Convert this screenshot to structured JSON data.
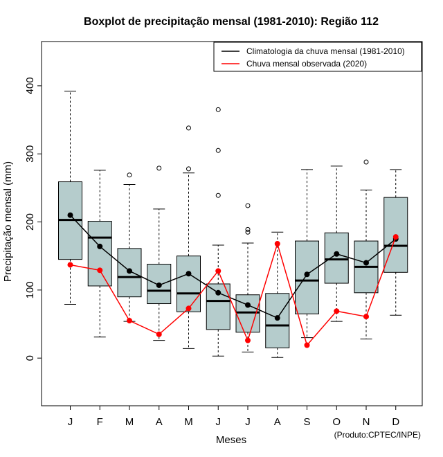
{
  "chart_data": {
    "type": "boxplot",
    "title": "Boxplot de precipitação mensal (1981-2010): Região 112",
    "xlabel": "Meses",
    "ylabel": "Precipitação mensal (mm)",
    "ylim": [
      -70,
      465
    ],
    "yticks": [
      0,
      100,
      200,
      300,
      400
    ],
    "categories": [
      "J",
      "F",
      "M",
      "A",
      "M",
      "J",
      "J",
      "A",
      "S",
      "O",
      "N",
      "D"
    ],
    "boxes": [
      {
        "whisker_low": 79,
        "q1": 145,
        "median": 203,
        "q3": 259,
        "whisker_high": 392,
        "outliers": []
      },
      {
        "whisker_low": 31,
        "q1": 106,
        "median": 177,
        "q3": 201,
        "whisker_high": 276,
        "outliers": []
      },
      {
        "whisker_low": 54,
        "q1": 90,
        "median": 119,
        "q3": 161,
        "whisker_high": 255,
        "outliers": [
          269
        ]
      },
      {
        "whisker_low": 26,
        "q1": 80,
        "median": 99,
        "q3": 138,
        "whisker_high": 219,
        "outliers": [
          279
        ]
      },
      {
        "whisker_low": 14,
        "q1": 68,
        "median": 95,
        "q3": 150,
        "whisker_high": 272,
        "outliers": [
          278,
          338
        ]
      },
      {
        "whisker_low": 3,
        "q1": 42,
        "median": 84,
        "q3": 109,
        "whisker_high": 166,
        "outliers": [
          239,
          305,
          365
        ]
      },
      {
        "whisker_low": 9,
        "q1": 38,
        "median": 67,
        "q3": 93,
        "whisker_high": 169,
        "outliers": [
          185,
          189,
          224
        ]
      },
      {
        "whisker_low": 1,
        "q1": 15,
        "median": 48,
        "q3": 95,
        "whisker_high": 185,
        "outliers": []
      },
      {
        "whisker_low": 30,
        "q1": 65,
        "median": 114,
        "q3": 172,
        "whisker_high": 277,
        "outliers": []
      },
      {
        "whisker_low": 54,
        "q1": 110,
        "median": 145,
        "q3": 184,
        "whisker_high": 282,
        "outliers": []
      },
      {
        "whisker_low": 28,
        "q1": 96,
        "median": 134,
        "q3": 172,
        "whisker_high": 247,
        "outliers": [
          288
        ]
      },
      {
        "whisker_low": 63,
        "q1": 126,
        "median": 165,
        "q3": 236,
        "whisker_high": 277,
        "outliers": []
      }
    ],
    "series": [
      {
        "name": "Climatologia da chuva mensal (1981-2010)",
        "color": "#000000",
        "values": [
          210,
          164,
          128,
          107,
          124,
          96,
          78,
          59,
          123,
          153,
          140,
          175
        ]
      },
      {
        "name": "Chuva mensal observada (2020)",
        "color": "#ff0000",
        "values": [
          137,
          129,
          55,
          35,
          73,
          128,
          26,
          168,
          19,
          69,
          61,
          178
        ]
      }
    ],
    "legend_position": "top-right",
    "box_fill": "#b5cccc",
    "credit": "(Produto:CPTEC/INPE)"
  }
}
